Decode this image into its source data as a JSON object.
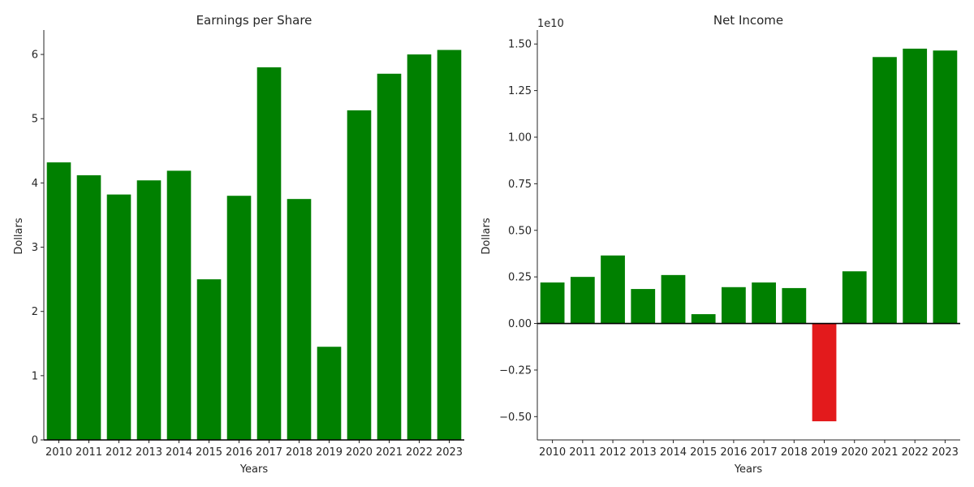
{
  "colors": {
    "positive": "#008000",
    "negative": "#e31a1c",
    "text": "#262626",
    "axis": "#262626"
  },
  "chart_data": [
    {
      "type": "bar",
      "title": "Earnings per Share",
      "xlabel": "Years",
      "ylabel": "Dollars",
      "categories": [
        "2010",
        "2011",
        "2012",
        "2013",
        "2014",
        "2015",
        "2016",
        "2017",
        "2018",
        "2019",
        "2020",
        "2021",
        "2022",
        "2023"
      ],
      "values": [
        4.32,
        4.12,
        3.82,
        4.04,
        4.19,
        2.5,
        3.8,
        5.8,
        3.75,
        1.45,
        5.13,
        5.7,
        6.0,
        6.07
      ],
      "ylim": [
        0,
        6.38
      ],
      "yticks": [
        0,
        1,
        2,
        3,
        4,
        5,
        6
      ],
      "ytick_labels": [
        "0",
        "1",
        "2",
        "3",
        "4",
        "5",
        "6"
      ],
      "scale_label": "",
      "zero_line": false,
      "grid": false,
      "legend": "none"
    },
    {
      "type": "bar",
      "title": "Net Income",
      "xlabel": "Years",
      "ylabel": "Dollars",
      "categories": [
        "2010",
        "2011",
        "2012",
        "2013",
        "2014",
        "2015",
        "2016",
        "2017",
        "2018",
        "2019",
        "2020",
        "2021",
        "2022",
        "2023"
      ],
      "values": [
        2200000000.0,
        2500000000.0,
        3650000000.0,
        1850000000.0,
        2600000000.0,
        500000000.0,
        1950000000.0,
        2200000000.0,
        1900000000.0,
        -5250000000.0,
        2800000000.0,
        14300000000.0,
        14750000000.0,
        14650000000.0
      ],
      "ylim": [
        -6250000000.0,
        15750000000.0
      ],
      "yticks": [
        -5000000000.0,
        -2500000000.0,
        0,
        2500000000.0,
        5000000000.0,
        7500000000.0,
        10000000000.0,
        12500000000.0,
        15000000000.0
      ],
      "ytick_labels": [
        "−0.50",
        "−0.25",
        "0.00",
        "0.25",
        "0.50",
        "0.75",
        "1.00",
        "1.25",
        "1.50"
      ],
      "scale_label": "1e10",
      "zero_line": true,
      "grid": false,
      "legend": "none"
    }
  ]
}
